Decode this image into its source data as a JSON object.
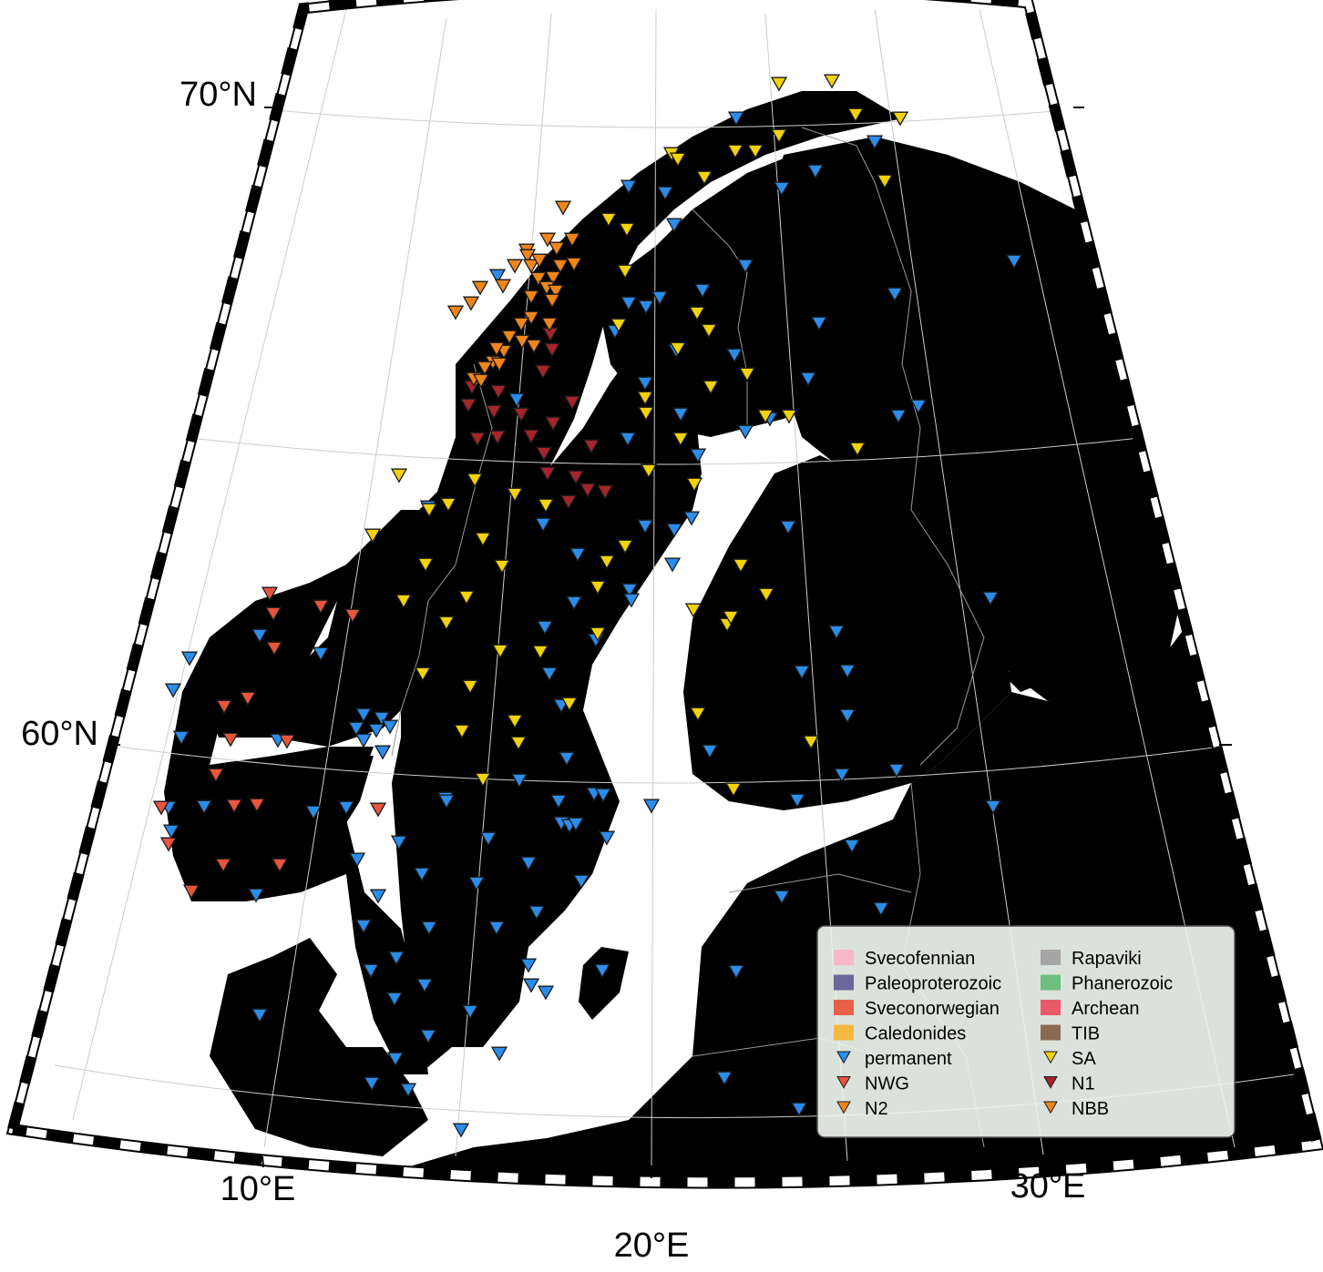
{
  "axes": {
    "lat_labels": [
      "70°N",
      "60°N"
    ],
    "lon_labels": [
      "10°E",
      "20°E",
      "30°E"
    ]
  },
  "colors": {
    "sea": "#ffffff",
    "land_other": "#ffffff",
    "svecofennian": "#fbe0e7",
    "paleoproterozoic": "#c3bfd5",
    "sveconorwegian": "#f4b3a8",
    "caledonides": "#fde2b7",
    "rapakivi": "#d9d9d9",
    "phanerozoic": "#c6e5cc",
    "archean": "#f5bec2",
    "tib": "#d6bfb5",
    "permanent": "#2b8cea",
    "nwg": "#e8553d",
    "n2": "#f0861a",
    "sa": "#f2d20a",
    "n1": "#a5252a",
    "nbb": "#f0861a"
  },
  "legend": {
    "items": [
      {
        "label": "Svecofennian",
        "kind": "patch",
        "color": "#f6b8ca"
      },
      {
        "label": "Rapaviki",
        "kind": "patch",
        "color": "#a6a6a6"
      },
      {
        "label": "Paleoproterozoic",
        "kind": "patch",
        "color": "#68699a"
      },
      {
        "label": "Phanerozoic",
        "kind": "patch",
        "color": "#6cbf7c"
      },
      {
        "label": "Sveconorwegian",
        "kind": "patch",
        "color": "#e8604a"
      },
      {
        "label": "Archean",
        "kind": "patch",
        "color": "#e85a6a"
      },
      {
        "label": "Caledonides",
        "kind": "patch",
        "color": "#f5b942"
      },
      {
        "label": "TIB",
        "kind": "patch",
        "color": "#8c6a4f"
      },
      {
        "label": "permanent",
        "kind": "marker",
        "color": "#2b8cea"
      },
      {
        "label": "SA",
        "kind": "marker",
        "color": "#f2d20a"
      },
      {
        "label": "NWG",
        "kind": "marker",
        "color": "#e8553d"
      },
      {
        "label": "N1",
        "kind": "marker",
        "color": "#a5252a"
      },
      {
        "label": "N2",
        "kind": "marker",
        "color": "#f0861a"
      },
      {
        "label": "NBB",
        "kind": "marker",
        "color": "#f0861a"
      }
    ]
  }
}
